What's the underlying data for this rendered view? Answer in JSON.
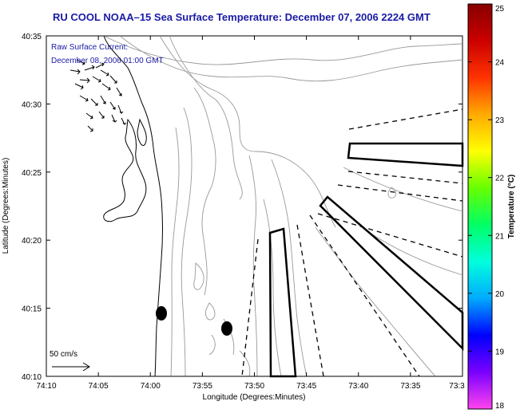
{
  "title": "RU COOL  NOAA–15  Sea Surface Temperature:  December 07, 2006 2224 GMT",
  "overlay": {
    "line1": "Raw Surface Current:",
    "line2": "December 08, 2006 01:00 GMT",
    "scale_label": "50 cm/s"
  },
  "axes": {
    "xlabel": "Longitude (Degrees:Minutes)",
    "ylabel": "Latitude (Degrees:Minutes)",
    "x_ticks": [
      "74:10",
      "74:05",
      "74:00",
      "73:55",
      "73:50",
      "73:45",
      "73:40",
      "73:35",
      "73:3"
    ],
    "y_ticks": [
      "40:35",
      "40:30",
      "40:25",
      "40:20",
      "40:15",
      "40:10"
    ]
  },
  "colorbar": {
    "title": "Temperature (°C)",
    "min": 18,
    "max": 25,
    "ticks": [
      "25",
      "24",
      "23",
      "22",
      "21",
      "20",
      "19",
      "18"
    ],
    "colors": [
      "#ff44ee",
      "#7a00ff",
      "#0000ff",
      "#00aaff",
      "#00ffdd",
      "#00ff66",
      "#66ff00",
      "#ffff00",
      "#ffaa00",
      "#ff3300",
      "#cc0000",
      "#880000"
    ]
  },
  "colors": {
    "title": "#1a1aa6",
    "contour": "#999999",
    "coastline": "#000000"
  }
}
